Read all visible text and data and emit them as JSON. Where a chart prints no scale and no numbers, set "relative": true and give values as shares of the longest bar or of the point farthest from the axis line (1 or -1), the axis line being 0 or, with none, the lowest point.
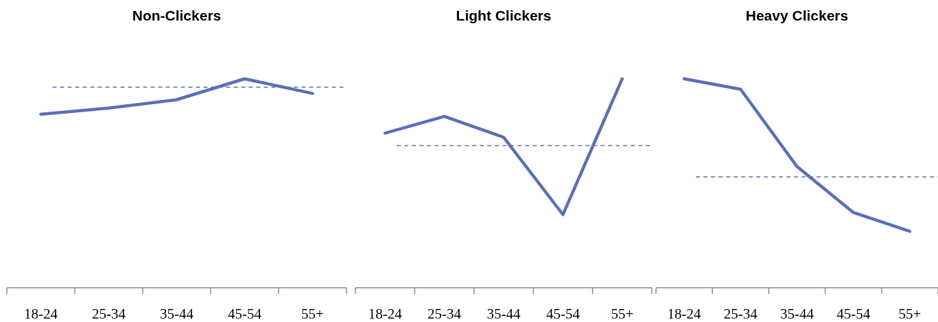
{
  "chart_data": [
    {
      "type": "line",
      "title": "Non-Clickers",
      "categories": [
        "18-24",
        "25-34",
        "35-44",
        "45-54",
        "55+"
      ],
      "relative": true,
      "series": [
        {
          "color": "#5b6fb5",
          "values": [
            0.83,
            0.86,
            0.9,
            1,
            0.93
          ]
        }
      ],
      "ref_lines": [
        {
          "axis": "y",
          "value": 0.96,
          "color": "#5b6fb5",
          "line_style": "dashed"
        }
      ],
      "grid": false,
      "marker": "none"
    },
    {
      "type": "line",
      "title": "Light Clickers",
      "categories": [
        "18-24",
        "25-34",
        "35-44",
        "45-54",
        "55+"
      ],
      "relative": true,
      "series": [
        {
          "color": "#5b6fb5",
          "values": [
            0.74,
            0.82,
            0.72,
            0.35,
            1
          ]
        }
      ],
      "ref_lines": [
        {
          "axis": "y",
          "value": 0.68,
          "color": "#5b6fb5",
          "line_style": "dashed"
        }
      ],
      "grid": false,
      "marker": "none"
    },
    {
      "type": "line",
      "title": "Heavy Clickers",
      "categories": [
        "18-24",
        "25-34",
        "35-44",
        "45-54",
        "55+"
      ],
      "relative": true,
      "series": [
        {
          "color": "#5b6fb5",
          "values": [
            1,
            0.95,
            0.58,
            0.36,
            0.27
          ]
        }
      ],
      "ref_lines": [
        {
          "axis": "y",
          "value": 0.53,
          "color": "#5b6fb5",
          "line_style": "dashed"
        }
      ],
      "grid": false,
      "marker": "none"
    }
  ]
}
